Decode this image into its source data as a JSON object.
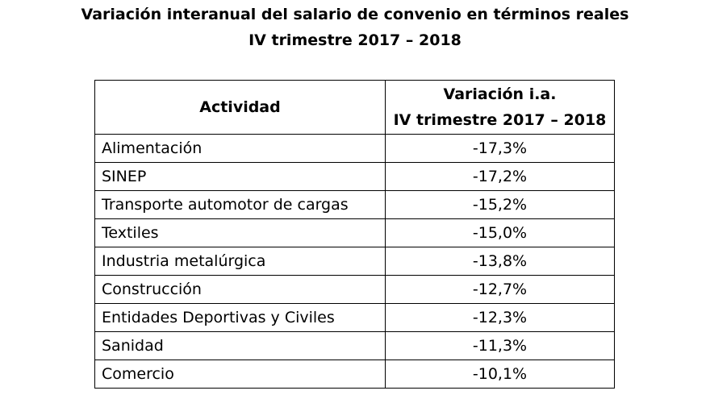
{
  "title": {
    "line1": "Variación interanual del salario de convenio en términos reales",
    "line2": "IV trimestre 2017 – 2018"
  },
  "table": {
    "headers": {
      "col1": "Actividad",
      "col2_line1": "Variación i.a.",
      "col2_line2": "IV trimestre 2017 – 2018"
    },
    "rows": [
      {
        "actividad": "Alimentación",
        "variacion": "-17,3%"
      },
      {
        "actividad": "SINEP",
        "variacion": "-17,2%"
      },
      {
        "actividad": "Transporte automotor de cargas",
        "variacion": "-15,2%"
      },
      {
        "actividad": "Textiles",
        "variacion": "-15,0%"
      },
      {
        "actividad": "Industria metalúrgica",
        "variacion": "-13,8%"
      },
      {
        "actividad": "Construcción",
        "variacion": "-12,7%"
      },
      {
        "actividad": "Entidades Deportivas y Civiles",
        "variacion": "-12,3%"
      },
      {
        "actividad": "Sanidad",
        "variacion": "-11,3%"
      },
      {
        "actividad": "Comercio",
        "variacion": "-10,1%"
      }
    ]
  }
}
